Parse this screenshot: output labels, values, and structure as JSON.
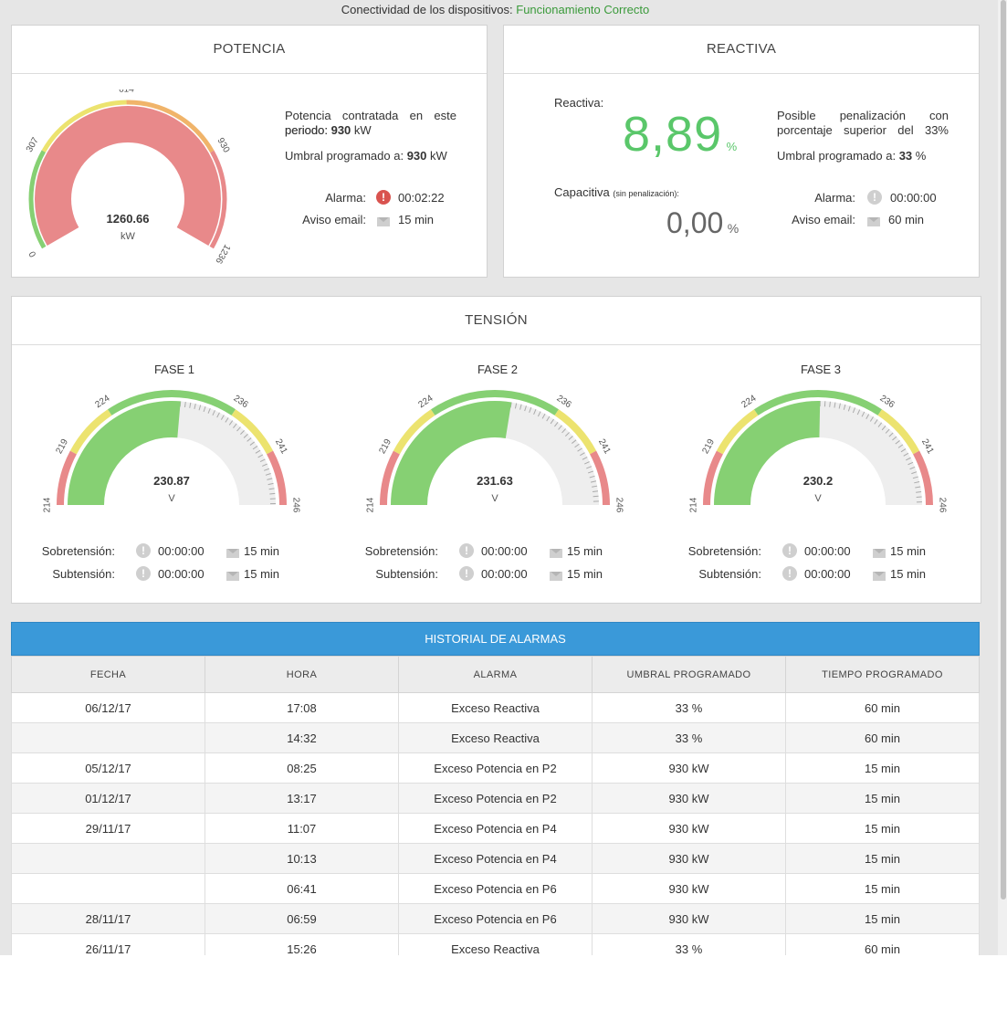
{
  "connectivity": {
    "label": "Conectividad de los dispositivos:",
    "status": "Funcionamiento Correcto",
    "status_color": "#3a9a3a"
  },
  "potencia": {
    "title": "POTENCIA",
    "gauge": {
      "value": "1260.66",
      "unit": "kW",
      "ticks": [
        "0",
        "307",
        "614",
        "930",
        "1236"
      ],
      "max": 1236,
      "fill_value": 1236,
      "fill_color": "#e8898a"
    },
    "contract_text": "Potencia contratada en este periodo:",
    "contract_value": "930",
    "contract_unit": "kW",
    "threshold_label": "Umbral programado a:",
    "threshold_value": "930",
    "threshold_unit": "kW",
    "alarm_label": "Alarma:",
    "alarm_time": "00:02:22",
    "alarm_icon": "exclamation-red-icon",
    "email_label": "Aviso email:",
    "email_time": "15 min"
  },
  "reactiva": {
    "title": "REACTIVA",
    "reactiva_label": "Reactiva:",
    "reactiva_value": "8,89",
    "reactiva_unit": "%",
    "capacitiva_label": "Capacitiva",
    "capacitiva_note": "(sin penalización):",
    "capacitiva_value": "0,00",
    "capacitiva_unit": "%",
    "penalty_text": "Posible penalización con porcentaje superior del 33%",
    "threshold_label": "Umbral programado a:",
    "threshold_value": "33",
    "threshold_unit": "%",
    "alarm_label": "Alarma:",
    "alarm_time": "00:00:00",
    "alarm_icon": "exclamation-grey-icon",
    "email_label": "Aviso email:",
    "email_time": "60 min"
  },
  "tension": {
    "title": "TENSIÓN",
    "phases": [
      {
        "name": "FASE 1",
        "value": "230.87",
        "unit": "V",
        "ticks": [
          "214",
          "219",
          "224",
          "236",
          "241",
          "246"
        ],
        "over_label": "Sobretensión:",
        "over_time": "00:00:00",
        "over_mail": "15 min",
        "under_label": "Subtensión:",
        "under_time": "00:00:00",
        "under_mail": "15 min"
      },
      {
        "name": "FASE 2",
        "value": "231.63",
        "unit": "V",
        "ticks": [
          "214",
          "219",
          "224",
          "236",
          "241",
          "246"
        ],
        "over_label": "Sobretensión:",
        "over_time": "00:00:00",
        "over_mail": "15 min",
        "under_label": "Subtensión:",
        "under_time": "00:00:00",
        "under_mail": "15 min"
      },
      {
        "name": "FASE 3",
        "value": "230.2",
        "unit": "V",
        "ticks": [
          "214",
          "219",
          "224",
          "236",
          "241",
          "246"
        ],
        "over_label": "Sobretensión:",
        "over_time": "00:00:00",
        "over_mail": "15 min",
        "under_label": "Subtensión:",
        "under_time": "00:00:00",
        "under_mail": "15 min"
      }
    ],
    "scale_min": 214,
    "scale_max": 246,
    "colors": {
      "red": "#e8898a",
      "yellow": "#ece36f",
      "green": "#86d073",
      "track": "#eeeeee"
    }
  },
  "historial": {
    "title": "HISTORIAL DE ALARMAS",
    "header_color": "#3a99d9",
    "columns": [
      "FECHA",
      "HORA",
      "ALARMA",
      "UMBRAL PROGRAMADO",
      "TIEMPO PROGRAMADO"
    ],
    "rows": [
      [
        "06/12/17",
        "17:08",
        "Exceso Reactiva",
        "33 %",
        "60 min"
      ],
      [
        "",
        "14:32",
        "Exceso Reactiva",
        "33 %",
        "60 min"
      ],
      [
        "05/12/17",
        "08:25",
        "Exceso Potencia en P2",
        "930 kW",
        "15 min"
      ],
      [
        "01/12/17",
        "13:17",
        "Exceso Potencia en P2",
        "930 kW",
        "15 min"
      ],
      [
        "29/11/17",
        "11:07",
        "Exceso Potencia en P4",
        "930 kW",
        "15 min"
      ],
      [
        "",
        "10:13",
        "Exceso Potencia en P4",
        "930 kW",
        "15 min"
      ],
      [
        "",
        "06:41",
        "Exceso Potencia en P6",
        "930 kW",
        "15 min"
      ],
      [
        "28/11/17",
        "06:59",
        "Exceso Potencia en P6",
        "930 kW",
        "15 min"
      ],
      [
        "26/11/17",
        "15:26",
        "Exceso Reactiva",
        "33 %",
        "60 min"
      ]
    ]
  }
}
